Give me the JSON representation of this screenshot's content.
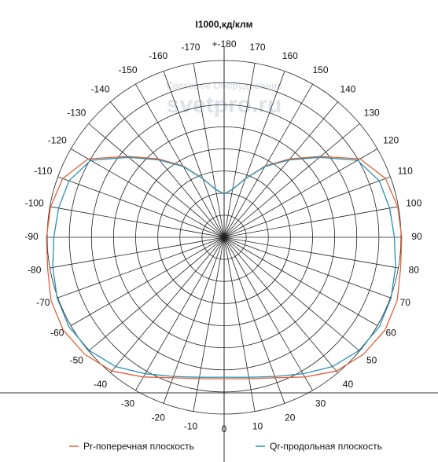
{
  "chart_data": {
    "type": "polar",
    "title": "I1000,кд/клм",
    "watermarks": [
      "Световое Оборудование",
      "svetpro.ru"
    ],
    "theta_direction": "from-bottom",
    "x": [
      -180,
      -170,
      -160,
      -150,
      -140,
      -130,
      -120,
      -110,
      -100,
      -90,
      -80,
      -70,
      -60,
      -50,
      -40,
      -30,
      -20,
      -10,
      0,
      10,
      20,
      30,
      40,
      50,
      60,
      70,
      80,
      90,
      100,
      110,
      120,
      130,
      140,
      150,
      160,
      170,
      180
    ],
    "series": [
      {
        "name": "Pr-поперечная плоскость",
        "color": "#e2613a",
        "values": [
          59,
          66,
          85,
          112,
          139,
          171,
          213,
          233,
          239,
          241,
          243,
          250,
          252,
          247,
          237,
          219,
          203,
          195,
          192,
          195,
          203,
          219,
          237,
          247,
          252,
          250,
          243,
          241,
          239,
          233,
          213,
          171,
          139,
          112,
          85,
          66,
          59
        ]
      },
      {
        "name": "Qr-продольная плоскость",
        "color": "#2a8fb0",
        "values": [
          59,
          66,
          85,
          111,
          137,
          169,
          209,
          224,
          228,
          231,
          236,
          241,
          243,
          239,
          229,
          214,
          201,
          193,
          190,
          193,
          201,
          214,
          229,
          239,
          243,
          241,
          236,
          231,
          228,
          224,
          209,
          169,
          137,
          111,
          85,
          66,
          59
        ]
      }
    ],
    "rlim": [
      0,
      240
    ],
    "rticks": [
      30,
      60,
      90,
      120,
      150,
      180,
      210,
      240
    ],
    "thetaticks": [
      0,
      10,
      20,
      30,
      40,
      50,
      60,
      70,
      80,
      90,
      100,
      110,
      120,
      130,
      140,
      150,
      160,
      170,
      {
        "value": 180,
        "label": "+-180"
      },
      -170,
      -160,
      -150,
      -140,
      -130,
      -120,
      -110,
      -100,
      -90,
      -80,
      -70,
      -60,
      -50,
      -40,
      -30,
      -20,
      -10
    ],
    "grid": true
  }
}
